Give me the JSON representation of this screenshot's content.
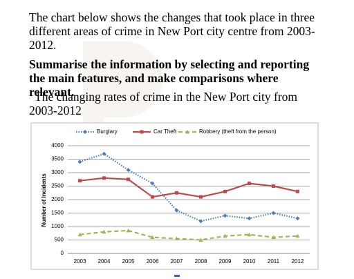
{
  "intro": "The chart below shows the changes that took place in three different areas of crime in New Port city centre from 2003-2012.",
  "instruction": "Summarise the information by selecting and reporting the main features, and make comparisons where relevant.",
  "chart_data": {
    "type": "line",
    "title": "The changing rates of crime in the New Port city from 2003-2012",
    "y_label": "Number of Incidents",
    "categories": [
      "2003",
      "2004",
      "2005",
      "2006",
      "2007",
      "2008",
      "2009",
      "2010",
      "2011",
      "2012"
    ],
    "series": [
      {
        "name": "Burglary",
        "color": "#4a7ebb",
        "values": [
          3400,
          3700,
          3100,
          2600,
          1600,
          1200,
          1400,
          1300,
          1500,
          1300
        ]
      },
      {
        "name": "Car Theft",
        "color": "#be4b48",
        "values": [
          2700,
          2800,
          2750,
          2100,
          2250,
          2100,
          2300,
          2600,
          2500,
          2300
        ]
      },
      {
        "name": "Robbery (theft from the person)",
        "color": "#98b954",
        "values": [
          700,
          800,
          850,
          600,
          550,
          500,
          650,
          700,
          600,
          650
        ]
      }
    ],
    "ylim": [
      0,
      4000
    ],
    "yticks": [
      0,
      500,
      1000,
      1500,
      2000,
      2500,
      3000,
      3500,
      4000
    ],
    "grid": true,
    "legend": "top"
  }
}
